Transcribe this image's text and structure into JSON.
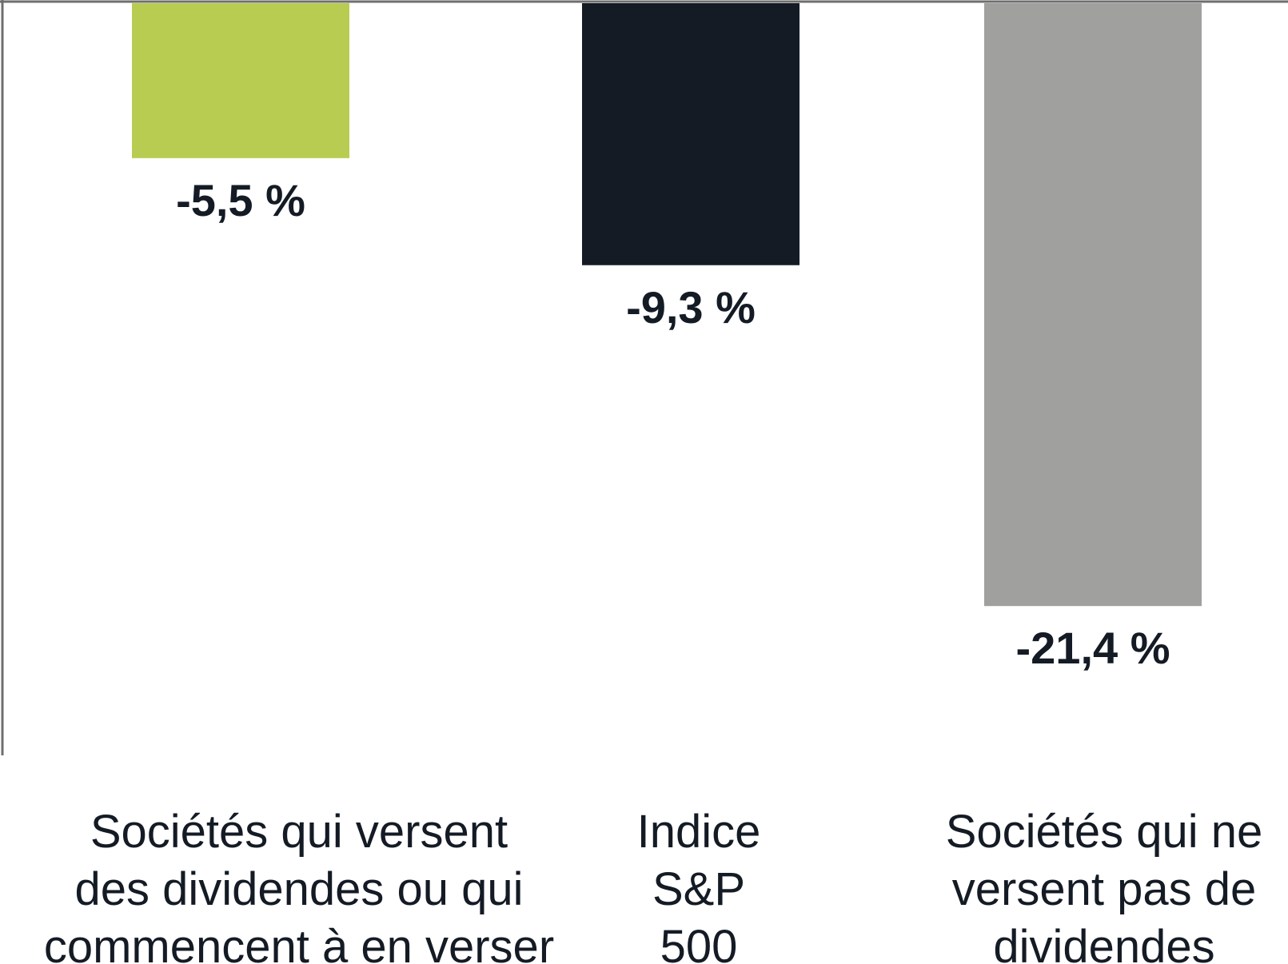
{
  "chart_data": {
    "type": "bar",
    "title": "",
    "xlabel": "",
    "ylabel": "",
    "categories": [
      "Sociétés qui versent des dividendes ou qui commencent à en verser",
      "Indice S&P 500",
      "Sociétés qui ne versent pas de dividendes"
    ],
    "category_lines": [
      [
        "Sociétés qui versent",
        "des dividendes ou qui",
        "commencent à en verser"
      ],
      [
        "Indice",
        "S&P",
        "500"
      ],
      [
        "Sociétés qui ne",
        "versent pas de",
        "dividendes"
      ]
    ],
    "values": [
      -5.5,
      -9.3,
      -21.4
    ],
    "value_labels": [
      "-5,5 %",
      "-9,3 %",
      "-21,4 %"
    ],
    "colors": [
      "#B8CC52",
      "#141B25",
      "#A0A09F"
    ],
    "label_color": "#141B25",
    "axis_color": "#6E6E6E",
    "ylim": [
      -26.7,
      0
    ],
    "grid": false,
    "legend": "none"
  }
}
